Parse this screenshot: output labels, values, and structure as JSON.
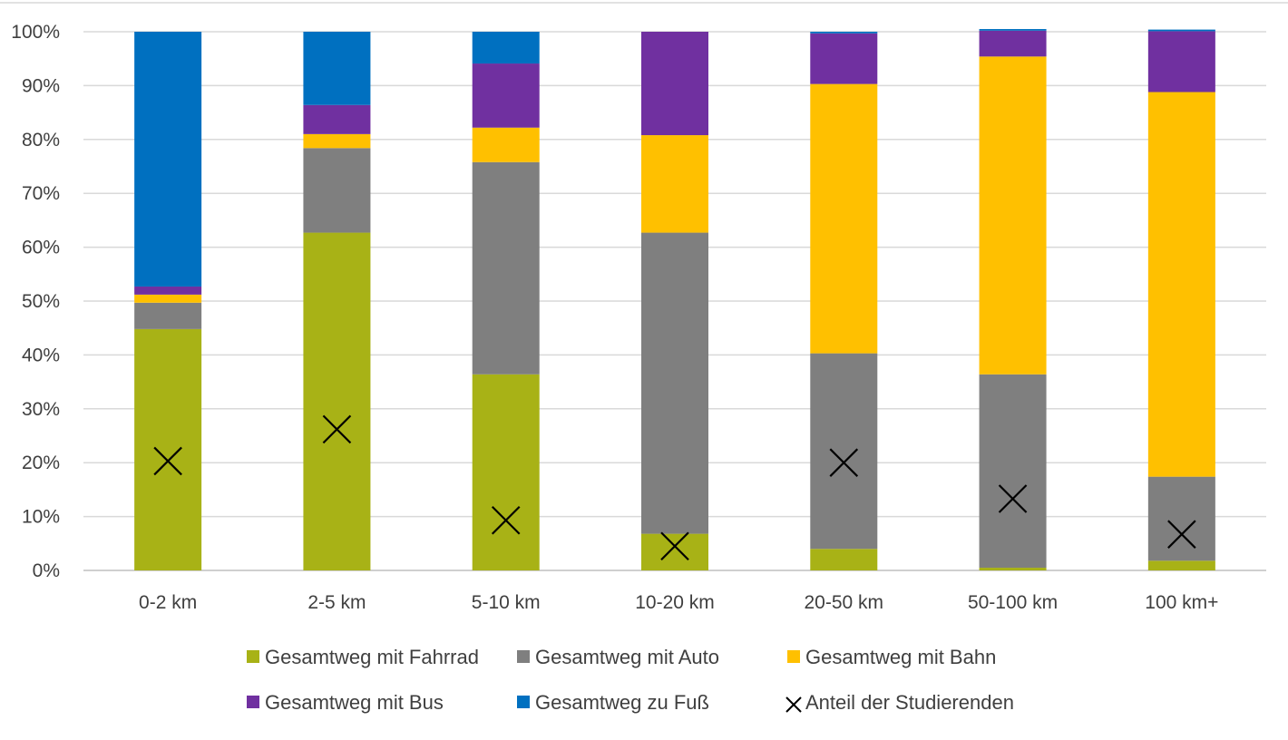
{
  "chart_data": {
    "type": "bar",
    "stacked": true,
    "title": "",
    "xlabel": "",
    "ylabel": "",
    "categories": [
      "0-2 km",
      "2-5 km",
      "5-10 km",
      "10-20 km",
      "20-50 km",
      "50-100 km",
      "100 km+"
    ],
    "yticks": [
      "0%",
      "10%",
      "20%",
      "30%",
      "40%",
      "50%",
      "60%",
      "70%",
      "80%",
      "90%",
      "100%"
    ],
    "ylim": [
      0,
      100
    ],
    "grid": true,
    "legend_position": "bottom",
    "series": [
      {
        "name": "Gesamtweg mit Fahrrad",
        "color": "#a8b216",
        "values": [
          44.8,
          62.7,
          36.4,
          6.8,
          4.0,
          0.5,
          1.8
        ]
      },
      {
        "name": "Gesamtweg mit Auto",
        "color": "#7f7f7f",
        "values": [
          4.9,
          15.7,
          39.4,
          55.9,
          36.3,
          35.9,
          15.6
        ]
      },
      {
        "name": "Gesamtweg mit Bahn",
        "color": "#ffc000",
        "values": [
          1.5,
          2.6,
          6.4,
          18.1,
          50.0,
          59.0,
          71.4
        ]
      },
      {
        "name": "Gesamtweg mit Bus",
        "color": "#7030a0",
        "values": [
          1.5,
          5.4,
          11.9,
          19.2,
          9.4,
          4.8,
          11.3
        ]
      },
      {
        "name": "Gesamtweg zu Fuß",
        "color": "#0070c0",
        "values": [
          47.3,
          13.6,
          5.9,
          0.0,
          0.3,
          0.3,
          0.3
        ]
      }
    ],
    "markers": {
      "name": "Anteil der Studierenden",
      "symbol": "×",
      "color": "#000000",
      "values": [
        20.3,
        26.2,
        9.3,
        4.5,
        20.0,
        13.3,
        6.7
      ]
    }
  }
}
